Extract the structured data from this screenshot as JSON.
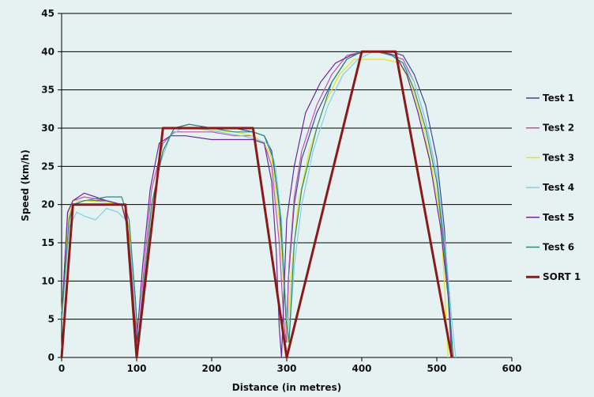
{
  "chart_data": {
    "type": "line",
    "title": "",
    "xlabel": "Distance (in metres)",
    "ylabel": "Speed (km/h)",
    "xlim": [
      0,
      600
    ],
    "ylim": [
      0,
      45
    ],
    "xticks": [
      0,
      100,
      200,
      300,
      400,
      500,
      600
    ],
    "yticks": [
      0,
      5,
      10,
      15,
      20,
      25,
      30,
      35,
      40,
      45
    ],
    "grid": "horizontal",
    "legend_position": "right",
    "series": [
      {
        "name": "Test 1",
        "color": "#3a4a9a",
        "x": [
          0,
          10,
          15,
          30,
          60,
          80,
          90,
          98,
          102,
          110,
          120,
          135,
          150,
          170,
          200,
          230,
          255,
          270,
          280,
          290,
          298,
          300,
          302,
          310,
          320,
          340,
          360,
          380,
          400,
          420,
          440,
          455,
          470,
          485,
          500,
          510,
          518,
          520
        ],
        "y": [
          5,
          18,
          20,
          20.5,
          20.5,
          20,
          17,
          8,
          2,
          10,
          20,
          27,
          30,
          30.5,
          30,
          30,
          29.5,
          29,
          27,
          20,
          8,
          2,
          10,
          20,
          26,
          32,
          36,
          39,
          40,
          40,
          40,
          39.5,
          37,
          33,
          26,
          17,
          5,
          0
        ]
      },
      {
        "name": "Test 2",
        "color": "#c050b0",
        "x": [
          0,
          8,
          15,
          30,
          60,
          80,
          90,
          97,
          102,
          110,
          120,
          135,
          150,
          170,
          200,
          230,
          255,
          270,
          280,
          290,
          296,
          299,
          303,
          310,
          320,
          340,
          360,
          380,
          400,
          420,
          440,
          455,
          470,
          485,
          500,
          510,
          518,
          520
        ],
        "y": [
          5,
          19,
          20.5,
          21,
          20.5,
          20,
          16,
          6,
          2,
          12,
          22,
          28,
          29.5,
          29.5,
          29.5,
          29,
          29,
          28,
          25,
          15,
          5,
          2,
          12,
          21,
          27,
          33,
          37,
          39.5,
          40,
          40,
          39.5,
          39,
          36,
          31,
          24,
          15,
          5,
          0
        ]
      },
      {
        "name": "Test 3",
        "color": "#e6e020",
        "x": [
          0,
          10,
          15,
          30,
          60,
          80,
          90,
          98,
          102,
          110,
          120,
          135,
          150,
          170,
          200,
          230,
          255,
          270,
          280,
          290,
          298,
          301,
          305,
          315,
          330,
          350,
          370,
          390,
          410,
          430,
          450,
          465,
          480,
          495,
          505,
          510,
          515
        ],
        "y": [
          6,
          19,
          20.5,
          20.5,
          20.3,
          20,
          17,
          7,
          2,
          10,
          20,
          27,
          30,
          30,
          29.7,
          29.5,
          29,
          28,
          26,
          18,
          7,
          2,
          10,
          20,
          27,
          33,
          37,
          39,
          39,
          39,
          38.5,
          36,
          31,
          24,
          18,
          10,
          0
        ]
      },
      {
        "name": "Test 4",
        "color": "#80d0e0",
        "x": [
          0,
          10,
          20,
          30,
          45,
          60,
          75,
          85,
          92,
          98,
          103,
          110,
          120,
          130,
          145,
          160,
          180,
          210,
          240,
          260,
          275,
          285,
          293,
          298,
          303,
          310,
          320,
          335,
          355,
          375,
          395,
          415,
          435,
          455,
          470,
          485,
          500,
          512,
          520,
          525
        ],
        "y": [
          5,
          17,
          19,
          18.5,
          18,
          19.5,
          19,
          18,
          14,
          7,
          2,
          8,
          17,
          25,
          29,
          30,
          30,
          29.5,
          29,
          28.5,
          28,
          25,
          18,
          8,
          2,
          12,
          20,
          27,
          33,
          37,
          39,
          40,
          40,
          38.5,
          36,
          31,
          24,
          14,
          5,
          0
        ]
      },
      {
        "name": "Test 5",
        "color": "#6a2a9a",
        "x": [
          0,
          8,
          15,
          30,
          60,
          80,
          88,
          95,
          100,
          108,
          118,
          130,
          145,
          165,
          200,
          230,
          255,
          270,
          280,
          286,
          290,
          293,
          300,
          310,
          325,
          345,
          365,
          385,
          405,
          425,
          445,
          460,
          475,
          490,
          505,
          515,
          520
        ],
        "y": [
          5,
          19,
          20.5,
          21.5,
          20.5,
          20,
          17,
          8,
          2,
          12,
          22,
          28,
          29,
          29,
          28.5,
          28.5,
          28.5,
          28,
          23,
          14,
          4,
          0,
          18,
          25,
          32,
          36,
          38.5,
          39.5,
          40,
          40,
          39.5,
          37,
          32,
          26,
          17,
          8,
          0
        ]
      },
      {
        "name": "Test 6",
        "color": "#2a8a7a",
        "x": [
          0,
          10,
          15,
          30,
          60,
          80,
          90,
          98,
          102,
          110,
          120,
          135,
          150,
          170,
          200,
          230,
          255,
          270,
          282,
          292,
          299,
          303,
          310,
          320,
          340,
          360,
          380,
          400,
          420,
          440,
          455,
          470,
          485,
          500,
          510,
          518,
          522
        ],
        "y": [
          5,
          18,
          20,
          20.5,
          21,
          21,
          18,
          8,
          2,
          10,
          20,
          27,
          30,
          30.5,
          30,
          29.5,
          29.5,
          29,
          26,
          18,
          5,
          2,
          15,
          22,
          30,
          36,
          39,
          40,
          40,
          39.5,
          38.5,
          35,
          30,
          23,
          14,
          5,
          0
        ]
      },
      {
        "name": "SORT 1",
        "color": "#8a1a1a",
        "x": [
          0,
          15,
          85,
          100,
          135,
          255,
          300,
          400,
          445,
          520
        ],
        "y": [
          0,
          20,
          20,
          0,
          30,
          30,
          0,
          40,
          40,
          0
        ]
      }
    ]
  }
}
